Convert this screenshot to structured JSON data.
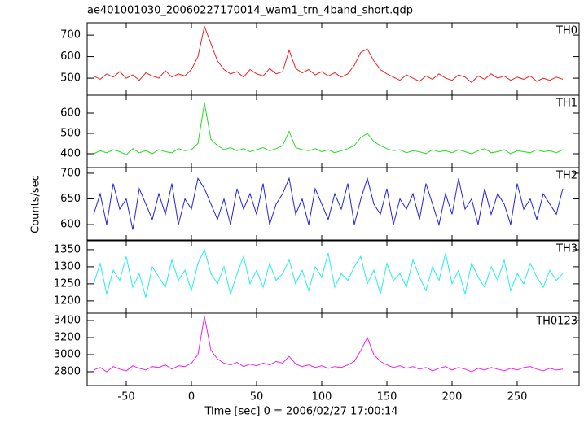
{
  "chart_data": [
    {
      "type": "line",
      "title": "ae401001030_20060227170014_wam1_trn_4band_short.qdp",
      "x": [
        -75,
        -70,
        -65,
        -60,
        -55,
        -50,
        -45,
        -40,
        -35,
        -30,
        -25,
        -20,
        -15,
        -10,
        -5,
        0,
        5,
        10,
        15,
        20,
        25,
        30,
        35,
        40,
        45,
        50,
        55,
        60,
        65,
        70,
        75,
        80,
        85,
        90,
        95,
        100,
        105,
        110,
        115,
        120,
        125,
        130,
        135,
        140,
        145,
        150,
        155,
        160,
        165,
        170,
        175,
        180,
        185,
        190,
        195,
        200,
        205,
        210,
        215,
        220,
        225,
        230,
        235,
        240,
        245,
        250,
        255,
        260,
        265,
        270,
        275,
        280,
        285
      ],
      "series": [
        {
          "name": "TH0",
          "color": "#ee2222",
          "values": [
            510,
            495,
            520,
            505,
            530,
            500,
            515,
            490,
            525,
            510,
            500,
            535,
            505,
            520,
            510,
            540,
            600,
            740,
            660,
            580,
            540,
            520,
            530,
            505,
            540,
            520,
            510,
            545,
            520,
            530,
            630,
            545,
            525,
            540,
            515,
            530,
            510,
            525,
            505,
            520,
            560,
            620,
            635,
            580,
            540,
            520,
            505,
            490,
            515,
            500,
            485,
            510,
            495,
            520,
            500,
            490,
            515,
            505,
            480,
            510,
            495,
            520,
            500,
            510,
            490,
            505,
            495,
            510,
            485,
            500,
            490,
            505,
            495
          ]
        }
      ],
      "xlim": [
        -80,
        297.5
      ],
      "ylim": [
        421,
        757
      ],
      "yticks": [
        500,
        600,
        700
      ]
    },
    {
      "type": "line",
      "x": [
        -75,
        -70,
        -65,
        -60,
        -55,
        -50,
        -45,
        -40,
        -35,
        -30,
        -25,
        -20,
        -15,
        -10,
        -5,
        0,
        5,
        10,
        15,
        20,
        25,
        30,
        35,
        40,
        45,
        50,
        55,
        60,
        65,
        70,
        75,
        80,
        85,
        90,
        95,
        100,
        105,
        110,
        115,
        120,
        125,
        130,
        135,
        140,
        145,
        150,
        155,
        160,
        165,
        170,
        175,
        180,
        185,
        190,
        195,
        200,
        205,
        210,
        215,
        220,
        225,
        230,
        235,
        240,
        245,
        250,
        255,
        260,
        265,
        270,
        275,
        280,
        285
      ],
      "series": [
        {
          "name": "TH1",
          "color": "#22dd22",
          "values": [
            400,
            415,
            405,
            420,
            410,
            395,
            425,
            405,
            415,
            400,
            420,
            410,
            405,
            425,
            415,
            420,
            450,
            650,
            470,
            440,
            420,
            430,
            415,
            425,
            410,
            420,
            430,
            415,
            425,
            440,
            510,
            430,
            420,
            415,
            425,
            410,
            420,
            405,
            415,
            425,
            440,
            480,
            500,
            460,
            440,
            425,
            415,
            420,
            405,
            415,
            410,
            400,
            420,
            410,
            415,
            405,
            420,
            410,
            400,
            415,
            425,
            405,
            410,
            420,
            400,
            415,
            410,
            405,
            420,
            410,
            415,
            405,
            420
          ]
        }
      ],
      "xlim": [
        -80,
        297.5
      ],
      "ylim": [
        332,
        688
      ],
      "yticks": [
        400,
        500,
        600
      ]
    },
    {
      "type": "line",
      "ylabel": "Counts/sec",
      "x": [
        -75,
        -70,
        -65,
        -60,
        -55,
        -50,
        -45,
        -40,
        -35,
        -30,
        -25,
        -20,
        -15,
        -10,
        -5,
        0,
        5,
        10,
        15,
        20,
        25,
        30,
        35,
        40,
        45,
        50,
        55,
        60,
        65,
        70,
        75,
        80,
        85,
        90,
        95,
        100,
        105,
        110,
        115,
        120,
        125,
        130,
        135,
        140,
        145,
        150,
        155,
        160,
        165,
        170,
        175,
        180,
        185,
        190,
        195,
        200,
        205,
        210,
        215,
        220,
        225,
        230,
        235,
        240,
        245,
        250,
        255,
        260,
        265,
        270,
        275,
        280,
        285
      ],
      "series": [
        {
          "name": "TH2",
          "color": "#2222dd",
          "values": [
            620,
            660,
            600,
            680,
            630,
            650,
            590,
            670,
            640,
            610,
            660,
            620,
            680,
            600,
            650,
            630,
            690,
            670,
            640,
            610,
            650,
            600,
            670,
            630,
            660,
            620,
            680,
            600,
            640,
            660,
            690,
            620,
            650,
            600,
            670,
            640,
            610,
            660,
            630,
            680,
            600,
            650,
            690,
            640,
            620,
            670,
            600,
            650,
            630,
            660,
            610,
            680,
            640,
            600,
            660,
            620,
            690,
            630,
            650,
            600,
            670,
            620,
            660,
            640,
            600,
            680,
            630,
            650,
            610,
            660,
            640,
            620,
            670
          ]
        }
      ],
      "xlim": [
        -80,
        297.5
      ],
      "ylim": [
        570,
        711
      ],
      "yticks": [
        600,
        650,
        700
      ]
    },
    {
      "type": "line",
      "x": [
        -75,
        -70,
        -65,
        -60,
        -55,
        -50,
        -45,
        -40,
        -35,
        -30,
        -25,
        -20,
        -15,
        -10,
        -5,
        0,
        5,
        10,
        15,
        20,
        25,
        30,
        35,
        40,
        45,
        50,
        55,
        60,
        65,
        70,
        75,
        80,
        85,
        90,
        95,
        100,
        105,
        110,
        115,
        120,
        125,
        130,
        135,
        140,
        145,
        150,
        155,
        160,
        165,
        170,
        175,
        180,
        185,
        190,
        195,
        200,
        205,
        210,
        215,
        220,
        225,
        230,
        235,
        240,
        245,
        250,
        255,
        260,
        265,
        270,
        275,
        280,
        285
      ],
      "series": [
        {
          "name": "TH3",
          "color": "#22eeee",
          "values": [
            1250,
            1310,
            1220,
            1290,
            1260,
            1330,
            1240,
            1280,
            1210,
            1300,
            1270,
            1240,
            1320,
            1260,
            1290,
            1230,
            1310,
            1350,
            1280,
            1250,
            1300,
            1220,
            1280,
            1330,
            1250,
            1290,
            1240,
            1310,
            1260,
            1280,
            1320,
            1250,
            1290,
            1230,
            1300,
            1270,
            1340,
            1240,
            1280,
            1260,
            1300,
            1330,
            1250,
            1290,
            1220,
            1310,
            1260,
            1280,
            1240,
            1320,
            1270,
            1230,
            1300,
            1260,
            1340,
            1250,
            1290,
            1220,
            1310,
            1270,
            1240,
            1300,
            1260,
            1320,
            1230,
            1280,
            1250,
            1310,
            1270,
            1240,
            1290,
            1260,
            1280
          ]
        }
      ],
      "xlim": [
        -80,
        297.5
      ],
      "ylim": [
        1164,
        1376
      ],
      "yticks": [
        1200,
        1250,
        1300,
        1350
      ]
    },
    {
      "type": "line",
      "xlabel": "Time [sec] 0 = 2006/02/27 17:00:14",
      "x": [
        -75,
        -70,
        -65,
        -60,
        -55,
        -50,
        -45,
        -40,
        -35,
        -30,
        -25,
        -20,
        -15,
        -10,
        -5,
        0,
        5,
        10,
        15,
        20,
        25,
        30,
        35,
        40,
        45,
        50,
        55,
        60,
        65,
        70,
        75,
        80,
        85,
        90,
        95,
        100,
        105,
        110,
        115,
        120,
        125,
        130,
        135,
        140,
        145,
        150,
        155,
        160,
        165,
        170,
        175,
        180,
        185,
        190,
        195,
        200,
        205,
        210,
        215,
        220,
        225,
        230,
        235,
        240,
        245,
        250,
        255,
        260,
        265,
        270,
        275,
        280,
        285
      ],
      "series": [
        {
          "name": "TH0123",
          "color": "#ee22ee",
          "values": [
            2820,
            2850,
            2800,
            2860,
            2830,
            2810,
            2870,
            2840,
            2820,
            2860,
            2850,
            2880,
            2830,
            2870,
            2860,
            2900,
            3000,
            3450,
            3050,
            2950,
            2900,
            2880,
            2910,
            2860,
            2890,
            2870,
            2900,
            2880,
            2920,
            2900,
            2980,
            2890,
            2860,
            2880,
            2850,
            2870,
            2840,
            2860,
            2850,
            2880,
            2920,
            3050,
            3200,
            3000,
            2920,
            2880,
            2850,
            2870,
            2840,
            2860,
            2830,
            2850,
            2810,
            2840,
            2860,
            2820,
            2850,
            2830,
            2800,
            2840,
            2820,
            2850,
            2830,
            2810,
            2840,
            2820,
            2850,
            2860,
            2830,
            2810,
            2840,
            2820,
            2830
          ]
        }
      ],
      "xlim": [
        -80,
        297.5
      ],
      "ylim": [
        2638,
        3486
      ],
      "yticks": [
        2800,
        3000,
        3200,
        3400
      ],
      "xticks": [
        -50,
        0,
        50,
        100,
        150,
        200,
        250
      ]
    }
  ]
}
